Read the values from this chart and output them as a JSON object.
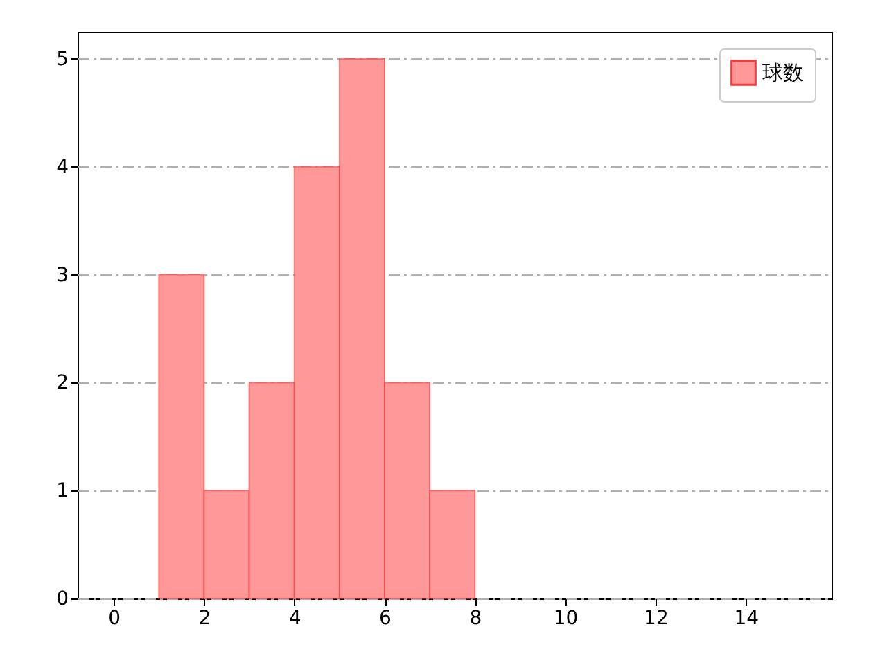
{
  "chart_data": {
    "type": "histogram",
    "bins": [
      1,
      2,
      3,
      4,
      5,
      6,
      7,
      8
    ],
    "series": [
      {
        "name": "球数",
        "color": "#ff9999",
        "values": [
          3,
          1,
          2,
          4,
          5,
          2,
          1
        ]
      }
    ],
    "xlim": [
      -0.8,
      15.9
    ],
    "xticks": [
      0,
      2,
      4,
      6,
      8,
      10,
      12,
      14
    ],
    "ylim": [
      0,
      5.25
    ],
    "yticks": [
      0,
      1,
      2,
      3,
      4,
      5
    ],
    "grid": "y",
    "legend": "top right"
  }
}
